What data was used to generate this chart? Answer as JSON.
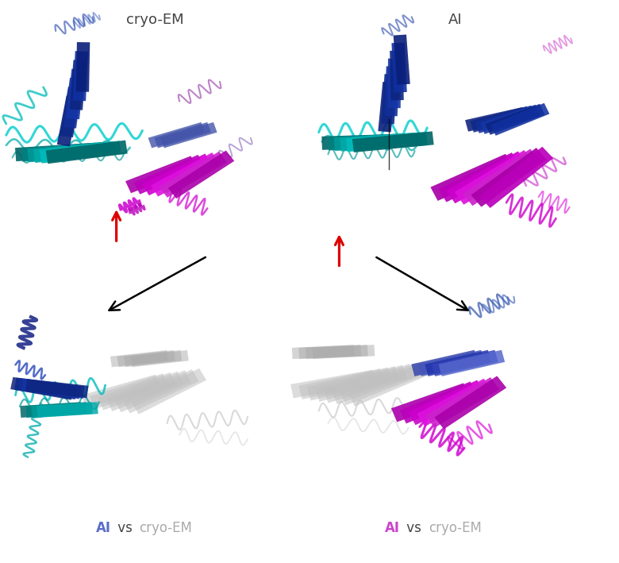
{
  "title_left": "cryo-EM",
  "title_right": "AI",
  "caption_left_ai_color": "#5B6EC7",
  "caption_right_ai_color": "#CC44CC",
  "caption_vs_color": "#444444",
  "caption_cryoem_color": "#AAAAAA",
  "red_arrow_color": "#DD0000",
  "title_fontsize": 13,
  "caption_fontsize": 12,
  "fig_width": 7.8,
  "fig_height": 7.09,
  "dpi": 100,
  "background_color": "#ffffff",
  "navy_colors": [
    "#0a1f7a",
    "#0e2888",
    "#122f99",
    "#1535a5",
    "#0d2580",
    "#1030a0"
  ],
  "teal_colors": [
    "#006666",
    "#008080",
    "#009999",
    "#00AAAA",
    "#00BBBB"
  ],
  "mag_colors": [
    "#AA00AA",
    "#BB00BB",
    "#CC00CC",
    "#DD11DD",
    "#CC22CC"
  ],
  "gray_color": "#C0C0C0",
  "gray_color2": "#AAAAAA",
  "cyan_bright": "#00CCCC",
  "cyan_mid": "#00AAAA",
  "cyan_dark": "#009999"
}
